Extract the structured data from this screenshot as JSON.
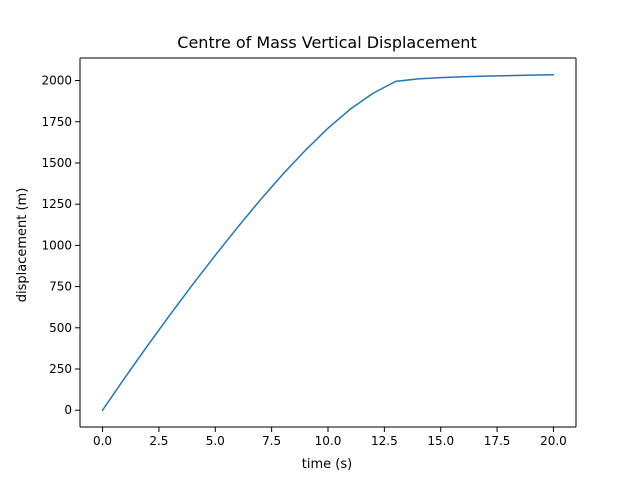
{
  "chart_data": {
    "type": "line",
    "title": "Centre of Mass Vertical Displacement",
    "xlabel": "time (s)",
    "ylabel": "displacement (m)",
    "xlim": [
      -1.0,
      21.0
    ],
    "ylim": [
      -101.75,
      2136.75
    ],
    "x_ticks": [
      0,
      2.5,
      5,
      7.5,
      10,
      12.5,
      15,
      17.5,
      20
    ],
    "x_tick_labels": [
      "0.0",
      "2.5",
      "5.0",
      "7.5",
      "10.0",
      "12.5",
      "15.0",
      "17.5",
      "20.0"
    ],
    "y_ticks": [
      0,
      250,
      500,
      750,
      1000,
      1250,
      1500,
      1750,
      2000
    ],
    "y_tick_labels": [
      "0",
      "250",
      "500",
      "750",
      "1000",
      "1250",
      "1500",
      "1750",
      "2000"
    ],
    "grid": false,
    "series": [
      {
        "color": "#1f77b4",
        "x": [
          0,
          1,
          2,
          3,
          4,
          5,
          6,
          7,
          8,
          9,
          10,
          11,
          12,
          13,
          14,
          15,
          16,
          17,
          18,
          19,
          20
        ],
        "y": [
          0,
          199,
          392,
          580,
          763,
          940,
          1111,
          1276,
          1432,
          1577,
          1711,
          1828,
          1923,
          1995,
          2010,
          2018,
          2023,
          2027,
          2030,
          2033,
          2035
        ]
      }
    ]
  }
}
